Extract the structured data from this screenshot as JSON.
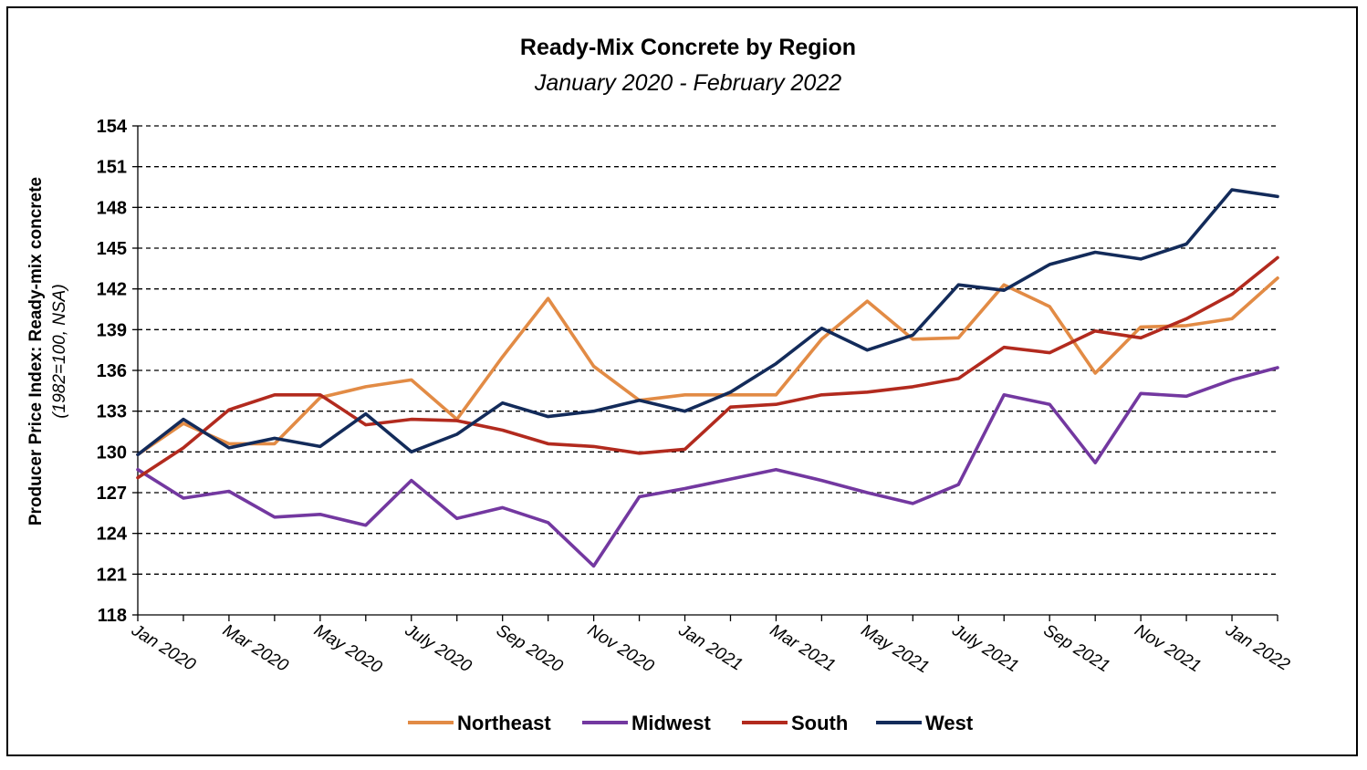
{
  "chart_data": {
    "type": "line",
    "title": "Ready-Mix Concrete by Region",
    "subtitle": "January 2020 - February 2022",
    "ylabel": "Producer Price Index: Ready-mix concrete",
    "ylabel_note": "(1982=100, NSA)",
    "xlabel": "",
    "ylim": [
      118,
      154
    ],
    "yticks": [
      118,
      121,
      124,
      127,
      130,
      133,
      136,
      139,
      142,
      145,
      148,
      151,
      154
    ],
    "grid": "horizontal dashed",
    "legend_position": "bottom",
    "x": [
      "Jan 2020",
      "Feb 2020",
      "Mar 2020",
      "Apr 2020",
      "May 2020",
      "Jun 2020",
      "Jul 2020",
      "Aug 2020",
      "Sep 2020",
      "Oct 2020",
      "Nov 2020",
      "Dec 2020",
      "Jan 2021",
      "Feb 2021",
      "Mar 2021",
      "Apr 2021",
      "May 2021",
      "Jun 2021",
      "Jul 2021",
      "Aug 2021",
      "Sep 2021",
      "Oct 2021",
      "Nov 2021",
      "Dec 2021",
      "Jan 2022",
      "Feb 2022"
    ],
    "xtick_labels": [
      "Jan 2020",
      "Mar 2020",
      "May 2020",
      "July 2020",
      "Sep 2020",
      "Nov 2020",
      "Jan 2021",
      "Mar 2021",
      "May 2021",
      "July 2021",
      "Sep 2021",
      "Nov 2021",
      "Jan 2022"
    ],
    "series": [
      {
        "name": "Northeast",
        "color": "#E28B45",
        "values": [
          129.8,
          132.1,
          130.6,
          130.6,
          134.0,
          134.8,
          135.3,
          132.4,
          137.0,
          141.3,
          136.3,
          133.8,
          134.2,
          134.2,
          134.2,
          138.3,
          141.1,
          138.3,
          138.4,
          142.3,
          140.7,
          135.8,
          139.2,
          139.3,
          139.8,
          142.8
        ]
      },
      {
        "name": "Midwest",
        "color": "#7338A0",
        "values": [
          128.7,
          126.6,
          127.1,
          125.2,
          125.4,
          124.6,
          127.9,
          125.1,
          125.9,
          124.8,
          121.6,
          126.7,
          127.3,
          128.0,
          128.7,
          127.9,
          127.0,
          126.2,
          127.6,
          134.2,
          133.5,
          129.2,
          134.3,
          134.1,
          135.3,
          136.2
        ]
      },
      {
        "name": "South",
        "color": "#B22A1E",
        "values": [
          128.1,
          130.3,
          133.1,
          134.2,
          134.2,
          132.0,
          132.4,
          132.3,
          131.6,
          130.6,
          130.4,
          129.9,
          130.2,
          133.3,
          133.5,
          134.2,
          134.4,
          134.8,
          135.4,
          137.7,
          137.3,
          138.9,
          138.4,
          139.8,
          141.6,
          144.3
        ]
      },
      {
        "name": "West",
        "color": "#132B5A",
        "values": [
          129.8,
          132.4,
          130.3,
          131.0,
          130.4,
          132.8,
          130.0,
          131.3,
          133.6,
          132.6,
          133.0,
          133.8,
          133.0,
          134.4,
          136.5,
          139.1,
          137.5,
          138.6,
          142.3,
          141.9,
          143.8,
          144.7,
          144.2,
          145.3,
          149.3,
          148.8
        ]
      }
    ]
  }
}
